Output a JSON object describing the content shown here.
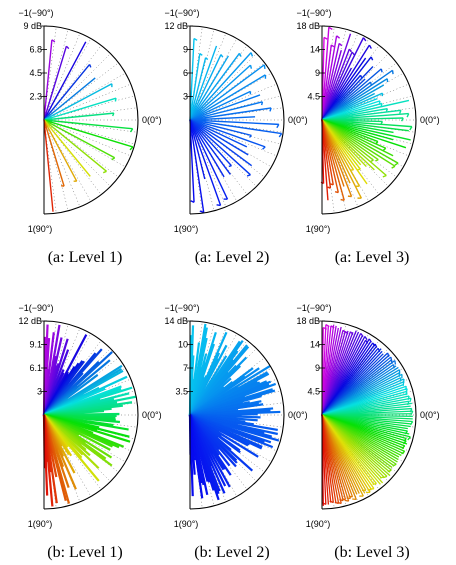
{
  "chart_data": [
    {
      "type": "polar-ray",
      "caption": "(a: Level 1)",
      "top_label": "−1(−90°)",
      "right_label": "0(0°)",
      "bottom_label": "1(90°)",
      "rticks": [
        "9 dB",
        "6.8",
        "4.5",
        "2.3"
      ],
      "rmax": 9,
      "rays": 16,
      "style": "sparse",
      "palette": [
        0,
        290
      ]
    },
    {
      "type": "polar-ray",
      "caption": "(a: Level 2)",
      "top_label": "−1(−90°)",
      "right_label": "0(0°)",
      "bottom_label": "1(90°)",
      "rticks": [
        "12 dB",
        "9",
        "6",
        "3"
      ],
      "rmax": 12,
      "rays": 32,
      "style": "sparse",
      "palette": [
        190,
        240
      ]
    },
    {
      "type": "polar-ray",
      "caption": "(a: Level 3)",
      "top_label": "−1(−90°)",
      "right_label": "0(0°)",
      "bottom_label": "1(90°)",
      "rticks": [
        "18 dB",
        "14",
        "9",
        "4.5"
      ],
      "rmax": 18,
      "rays": 64,
      "style": "sparse",
      "palette": [
        0,
        300
      ]
    },
    {
      "type": "polar-ray",
      "caption": "(b: Level 1)",
      "top_label": "−1(−90°)",
      "right_label": "0(0°)",
      "bottom_label": "1(90°)",
      "rticks": [
        "12 dB",
        "9.1",
        "6.1",
        "3"
      ],
      "rmax": 12,
      "rays": 120,
      "style": "dense",
      "palette": [
        0,
        290
      ]
    },
    {
      "type": "polar-ray",
      "caption": "(b: Level 2)",
      "top_label": "−1(−90°)",
      "right_label": "0(0°)",
      "bottom_label": "1(90°)",
      "rticks": [
        "14 dB",
        "10",
        "7",
        "3.5"
      ],
      "rmax": 14,
      "rays": 140,
      "style": "dense",
      "palette": [
        190,
        240
      ]
    },
    {
      "type": "polar-ray",
      "caption": "(b: Level 3)",
      "top_label": "−1(−90°)",
      "right_label": "0(0°)",
      "bottom_label": "1(90°)",
      "rticks": [
        "18 dB",
        "14",
        "9",
        "4.5"
      ],
      "rmax": 18,
      "rays": 110,
      "style": "fan",
      "palette": [
        0,
        300
      ]
    }
  ]
}
